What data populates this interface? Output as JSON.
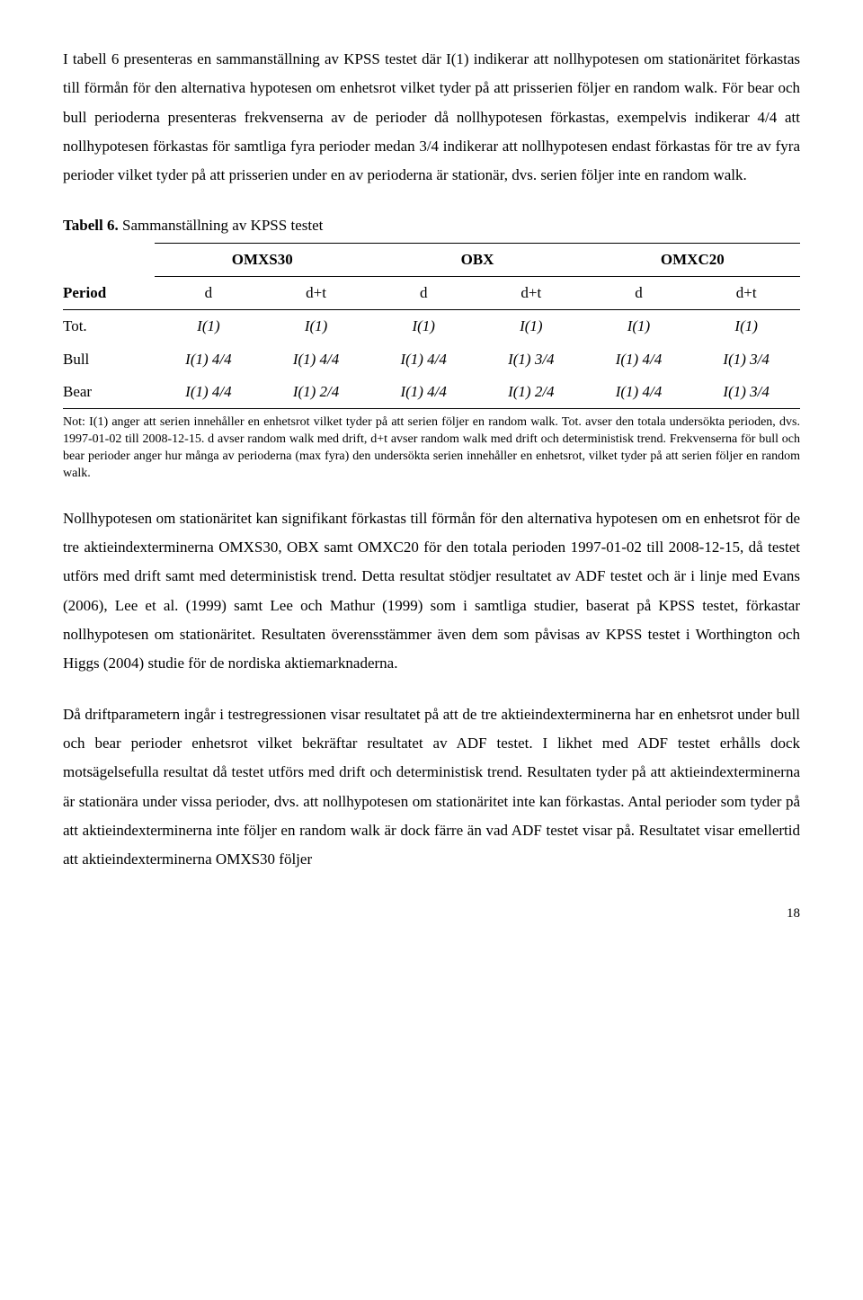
{
  "paragraph1": "I tabell 6 presenteras en sammanställning av KPSS testet där I(1) indikerar att nollhypotesen om stationäritet förkastas till förmån för den alternativa hypotesen om enhetsrot vilket tyder på att prisserien följer en random walk. För bear och bull perioderna presenteras frekvenserna av de perioder då nollhypotesen förkastas, exempelvis indikerar 4/4 att nollhypotesen förkastas för samtliga fyra perioder medan 3/4 indikerar att nollhypotesen endast förkastas för tre av fyra perioder vilket tyder på att prisserien under en av perioderna är stationär, dvs. serien följer inte en random walk.",
  "table": {
    "title_bold": "Tabell 6.",
    "title_rest": " Sammanställning av KPSS testet",
    "groups": [
      "OMXS30",
      "OBX",
      "OMXC20"
    ],
    "period_label": "Period",
    "sub_d": "d",
    "sub_dt": "d+t",
    "rows": [
      {
        "label": "Tot.",
        "cells": [
          "I(1)",
          "I(1)",
          "I(1)",
          "I(1)",
          "I(1)",
          "I(1)"
        ]
      },
      {
        "label": "Bull",
        "cells": [
          "I(1) 4/4",
          "I(1) 4/4",
          "I(1) 4/4",
          "I(1) 3/4",
          "I(1) 4/4",
          "I(1) 3/4"
        ]
      },
      {
        "label": "Bear",
        "cells": [
          "I(1) 4/4",
          "I(1) 2/4",
          "I(1) 4/4",
          "I(1) 2/4",
          "I(1) 4/4",
          "I(1) 3/4"
        ]
      }
    ]
  },
  "note": "Not: I(1) anger att serien innehåller en enhetsrot vilket tyder på att serien följer en random walk. Tot. avser den totala undersökta perioden, dvs. 1997-01-02 till 2008-12-15. d avser random walk med drift, d+t avser random walk med drift och deterministisk trend. Frekvenserna för bull och bear perioder anger hur många av perioderna (max fyra) den undersökta serien innehåller en enhetsrot, vilket tyder på att serien följer en random walk.",
  "paragraph2": "Nollhypotesen om stationäritet kan signifikant förkastas till förmån för den alternativa hypotesen om en enhetsrot för de tre aktieindexterminerna OMXS30, OBX samt OMXC20 för den totala perioden 1997-01-02 till 2008-12-15, då testet utförs med drift samt med deterministisk trend. Detta resultat stödjer resultatet av ADF testet och är i linje med Evans (2006), Lee et al. (1999) samt Lee och Mathur (1999) som i samtliga studier, baserat på KPSS testet, förkastar nollhypotesen om stationäritet. Resultaten överensstämmer även dem som påvisas av KPSS testet i Worthington och Higgs (2004) studie för de nordiska aktiemarknaderna.",
  "paragraph3": "Då driftparametern ingår i testregressionen visar resultatet på att de tre aktieindexterminerna har en enhetsrot under bull och bear perioder enhetsrot vilket bekräftar resultatet av ADF testet. I likhet med ADF testet erhålls dock motsägelsefulla resultat då testet utförs med drift och deterministisk trend. Resultaten tyder på att aktieindexterminerna är stationära under vissa perioder, dvs. att nollhypotesen om stationäritet inte kan förkastas. Antal perioder som tyder på att aktieindexterminerna inte följer en random walk är dock färre än vad ADF testet visar på. Resultatet visar emellertid att aktieindexterminerna OMXS30 följer",
  "page_number": "18"
}
